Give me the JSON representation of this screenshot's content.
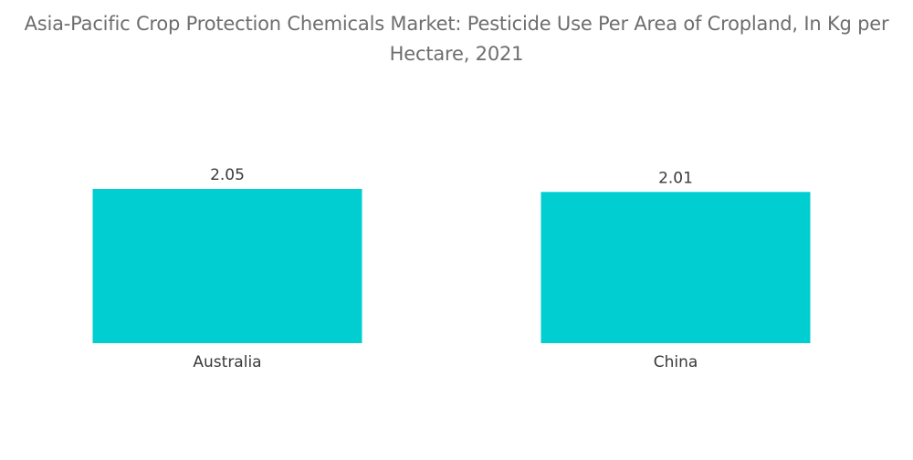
{
  "chart_data": {
    "type": "bar",
    "title": "Asia-Pacific Crop Protection Chemicals Market: Pesticide Use Per Area of Cropland, In Kg per Hectare, 2021",
    "categories": [
      "Australia",
      "China"
    ],
    "values": [
      2.05,
      2.01
    ],
    "value_labels": [
      "2.05",
      "2.01"
    ],
    "xlabel": "",
    "ylabel": "",
    "ylim": [
      0,
      2.05
    ],
    "grid": false,
    "legend": "none",
    "bar_color": "#00CED1"
  }
}
